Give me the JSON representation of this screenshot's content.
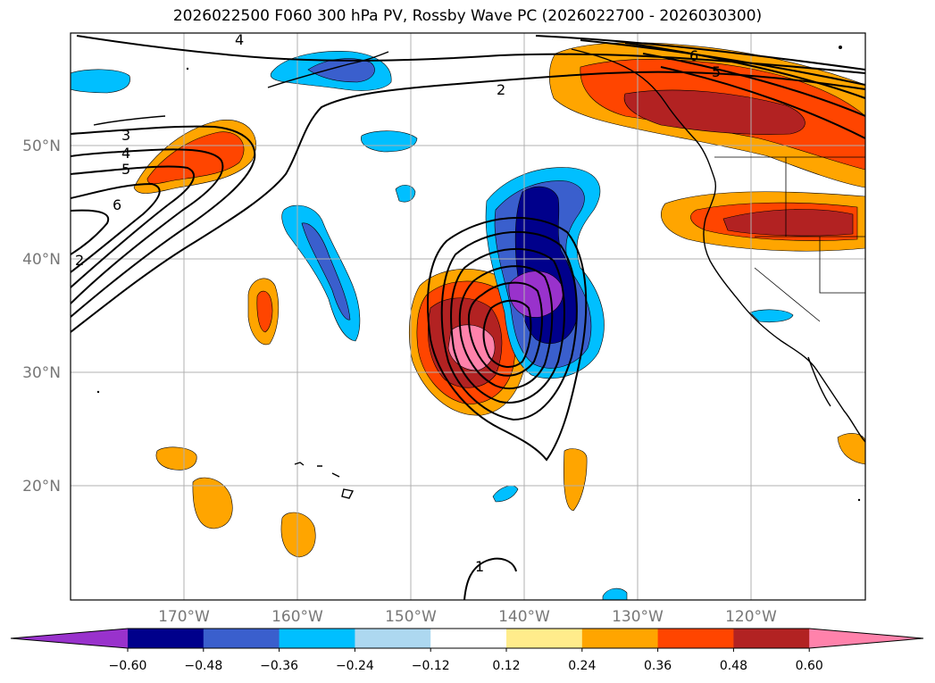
{
  "title": "2026022500 F060 300 hPa PV, Rossby Wave PC (2026022700 - 2026030300)",
  "map": {
    "lon_ticks": [
      "170°W",
      "160°W",
      "150°W",
      "140°W",
      "130°W",
      "120°W"
    ],
    "lat_ticks": [
      "50°N",
      "40°N",
      "30°N",
      "20°N"
    ],
    "contour_labels": [
      "4",
      "2",
      "3",
      "4",
      "5",
      "6",
      "2",
      "6",
      "5",
      "1"
    ]
  },
  "colorbar": {
    "colors": [
      "#9932cc",
      "#00008b",
      "#3a5fcd",
      "#00bfff",
      "#add8f0",
      "#ffffff",
      "#ffec8b",
      "#ffa500",
      "#ff4500",
      "#b22222",
      "#ff82ab"
    ],
    "ticks": [
      "−0.60",
      "−0.48",
      "−0.36",
      "−0.24",
      "−0.12",
      "0.12",
      "0.24",
      "0.36",
      "0.48",
      "0.60"
    ]
  }
}
